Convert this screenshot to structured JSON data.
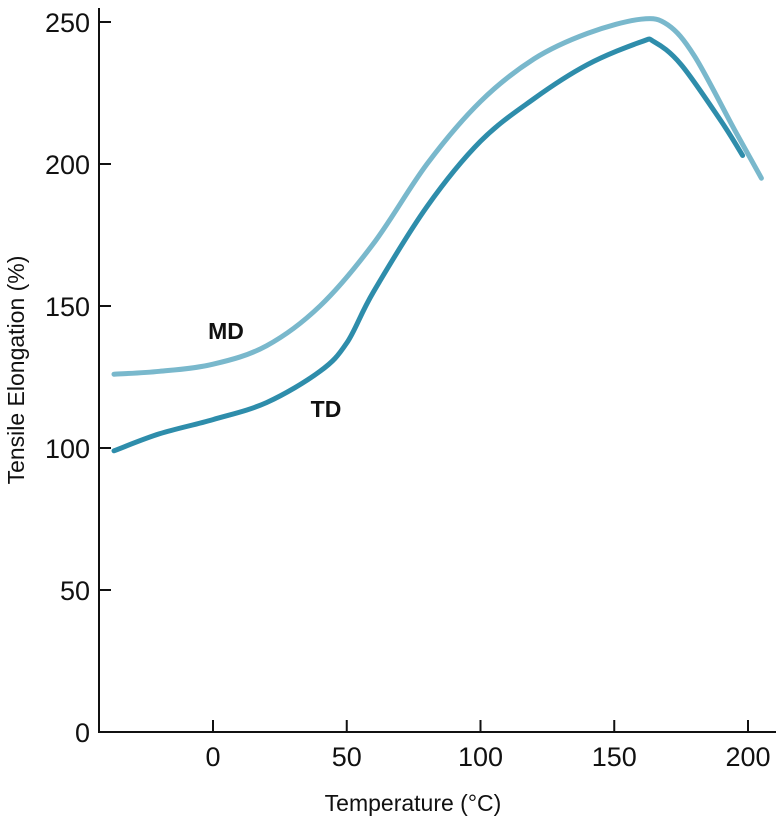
{
  "chart_data": {
    "type": "line",
    "title": "",
    "xlabel": "Temperature (°C)",
    "ylabel": "Tensile Elongation (%)",
    "xlim": [
      -40,
      210
    ],
    "ylim": [
      0,
      250
    ],
    "x_ticks": [
      0,
      50,
      100,
      150,
      200
    ],
    "y_ticks": [
      0,
      50,
      100,
      150,
      200,
      250
    ],
    "grid": false,
    "series": [
      {
        "name": "MD",
        "color": "#79b8cc",
        "points": [
          [
            -37,
            126
          ],
          [
            -20,
            127
          ],
          [
            0,
            129.5
          ],
          [
            20,
            136
          ],
          [
            40,
            150
          ],
          [
            60,
            172
          ],
          [
            80,
            200
          ],
          [
            100,
            222
          ],
          [
            120,
            237
          ],
          [
            140,
            246
          ],
          [
            160,
            251
          ],
          [
            170,
            249
          ],
          [
            180,
            238
          ],
          [
            195,
            212
          ],
          [
            205,
            195
          ]
        ]
      },
      {
        "name": "TD",
        "color": "#2e8dab",
        "points": [
          [
            -37,
            99
          ],
          [
            -20,
            105
          ],
          [
            0,
            110
          ],
          [
            20,
            116
          ],
          [
            40,
            127
          ],
          [
            50,
            137
          ],
          [
            60,
            155
          ],
          [
            80,
            185
          ],
          [
            100,
            208
          ],
          [
            120,
            223
          ],
          [
            140,
            235
          ],
          [
            160,
            243
          ],
          [
            165,
            243
          ],
          [
            175,
            235
          ],
          [
            190,
            215
          ],
          [
            198,
            203
          ]
        ]
      }
    ]
  }
}
